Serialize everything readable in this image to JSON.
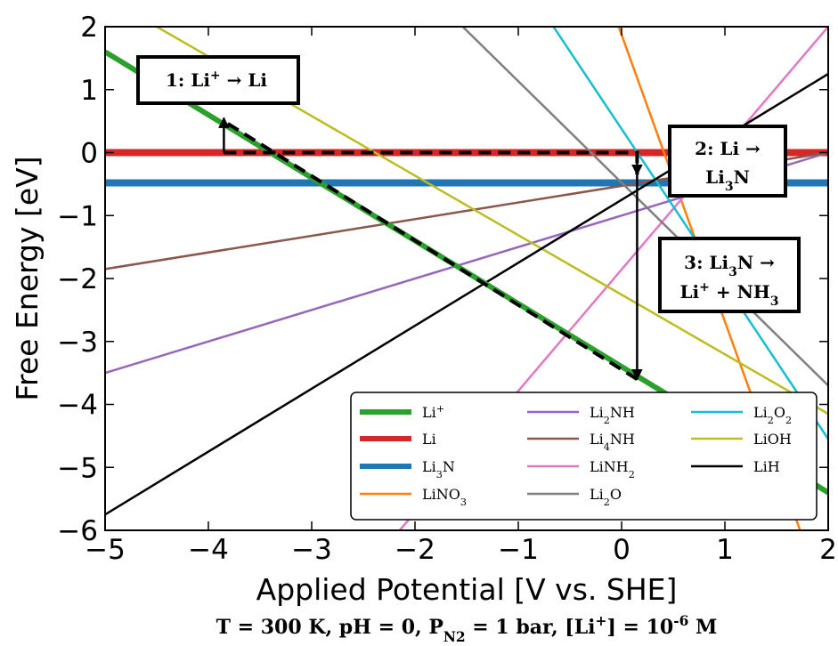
{
  "chart_data": {
    "type": "line",
    "xlabel": "Applied Potential [V vs. SHE]",
    "ylabel": "Free Energy [eV]",
    "xlim": [
      -5,
      2
    ],
    "ylim": [
      -6,
      2
    ],
    "xticks": [
      -5,
      -4,
      -3,
      -2,
      -1,
      0,
      1,
      2
    ],
    "yticks": [
      2,
      1,
      0,
      -1,
      -2,
      -3,
      -4,
      -5,
      -6
    ],
    "caption": {
      "prefix": "T = 300 K, pH = 0, P",
      "p_sub": "N2",
      "mid": " = 1 bar, [Li",
      "li_sup": "+",
      "suffix1": "] = 10",
      "exp": "-6",
      "suffix2": " M"
    },
    "grid": false,
    "legend_position": "lower-right",
    "series": [
      {
        "name": "Li",
        "name_sup": "+",
        "color": "#2ca02c",
        "width": 6,
        "x": [
          -5,
          2
        ],
        "y": [
          1.6,
          -5.4
        ]
      },
      {
        "name": "Li",
        "color": "#d62728",
        "width": 8,
        "x": [
          -5,
          2
        ],
        "y": [
          0.0,
          0.0
        ]
      },
      {
        "name": "Li",
        "name_sub": "3",
        "name_after": "N",
        "color": "#1f77b4",
        "width": 8,
        "x": [
          -5,
          2
        ],
        "y": [
          -0.48,
          -0.48
        ]
      },
      {
        "name": "LiNO",
        "name_sub": "3",
        "color": "#ff7f0e",
        "width": 2.5,
        "x": [
          -0.05,
          1.75
        ],
        "y": [
          2.1,
          -6.1
        ]
      },
      {
        "name": "Li",
        "name_sub": "2",
        "name_after": "NH",
        "color": "#9467bd",
        "width": 2.5,
        "x": [
          -5,
          2
        ],
        "y": [
          -3.5,
          0.0
        ]
      },
      {
        "name": "Li",
        "name_sub": "4",
        "name_after": "NH",
        "color": "#8c564b",
        "width": 2.5,
        "x": [
          -5,
          2
        ],
        "y": [
          -1.85,
          0.0
        ]
      },
      {
        "name": "LiNH",
        "name_sub": "2",
        "color": "#e377c2",
        "width": 2.5,
        "x": [
          -2.2,
          2
        ],
        "y": [
          -6.1,
          2.0
        ]
      },
      {
        "name": "Li",
        "name_sub": "2",
        "name_after": "O",
        "color": "#7f7f7f",
        "width": 2.5,
        "x": [
          -1.6,
          2
        ],
        "y": [
          2.1,
          -3.7
        ]
      },
      {
        "name": "Li",
        "name_sub": "2",
        "name_after": "O",
        "name_sub2": "2",
        "color": "#17becf",
        "width": 2.5,
        "x": [
          -0.7,
          2
        ],
        "y": [
          2.1,
          -4.55
        ]
      },
      {
        "name": "LiOH",
        "color": "#bcbd22",
        "width": 2.5,
        "x": [
          -4.5,
          2
        ],
        "y": [
          2.0,
          -4.15
        ]
      },
      {
        "name": "LiH",
        "color": "#000000",
        "width": 2.5,
        "x": [
          -5,
          2
        ],
        "y": [
          -5.75,
          1.25
        ]
      }
    ],
    "path": {
      "dashed": [
        [
          -3.85,
          0.0
        ],
        [
          0.15,
          0.0
        ],
        [
          0.15,
          -0.35
        ]
      ],
      "dashed_diag": [
        [
          0.15,
          -3.6
        ],
        [
          -3.85,
          0.5
        ]
      ],
      "arrows": [
        {
          "from": [
            -3.85,
            0.0
          ],
          "to": [
            -3.85,
            0.55
          ]
        },
        {
          "from": [
            0.15,
            0.0
          ],
          "to": [
            0.15,
            -0.35
          ]
        },
        {
          "from": [
            0.15,
            -0.35
          ],
          "to": [
            0.15,
            -3.6
          ]
        }
      ]
    },
    "annotations": [
      {
        "id": "anno-1",
        "lines": [
          {
            "parts": [
              {
                "t": "1: Li"
              },
              {
                "t": "+",
                "sup": true
              },
              {
                "t": " → Li"
              }
            ]
          }
        ]
      },
      {
        "id": "anno-2",
        "lines": [
          {
            "parts": [
              {
                "t": "2: Li →"
              }
            ]
          },
          {
            "parts": [
              {
                "t": "Li"
              },
              {
                "t": "3",
                "sub": true
              },
              {
                "t": "N"
              }
            ]
          }
        ]
      },
      {
        "id": "anno-3",
        "lines": [
          {
            "parts": [
              {
                "t": "3: Li"
              },
              {
                "t": "3",
                "sub": true
              },
              {
                "t": "N →"
              }
            ]
          },
          {
            "parts": [
              {
                "t": "Li"
              },
              {
                "t": "+",
                "sup": true
              },
              {
                "t": " + NH"
              },
              {
                "t": "3",
                "sub": true
              }
            ]
          }
        ]
      }
    ]
  }
}
